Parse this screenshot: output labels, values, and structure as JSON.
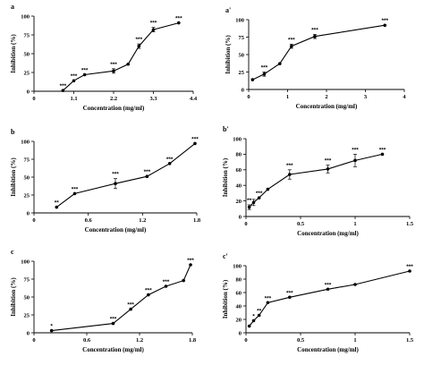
{
  "chart_data": [
    {
      "type": "line",
      "panel_label": "a",
      "xlabel": "Concentration (mg/ml)",
      "ylabel": "Inhibition (%)",
      "xlim": [
        0,
        4.4
      ],
      "ylim": [
        0,
        100
      ],
      "xticks": [
        {
          "value": 0,
          "label": "0"
        },
        {
          "value": 1.1,
          "label": "1.1"
        },
        {
          "value": 2.2,
          "label": "2.2"
        },
        {
          "value": 3.3,
          "label": "3.3"
        },
        {
          "value": 4.4,
          "label": "4.4"
        }
      ],
      "yticks": [
        0,
        25,
        50,
        75,
        100
      ],
      "x": [
        0.8,
        1.1,
        1.4,
        2.2,
        2.6,
        2.9,
        3.3,
        4.0
      ],
      "y": [
        1,
        14,
        22,
        27,
        36,
        60,
        82,
        91
      ],
      "err": [
        0,
        0,
        0,
        3,
        0,
        3,
        3,
        0
      ],
      "labels": [
        "***",
        "***",
        "***",
        "***",
        "",
        "***",
        "***",
        "***"
      ]
    },
    {
      "type": "line",
      "panel_label": "a'",
      "xlabel": "Concentration (mg/ml)",
      "ylabel": "Inhibition (%)",
      "xlim": [
        0,
        4
      ],
      "ylim": [
        0,
        100
      ],
      "xticks": [
        {
          "value": 0,
          "label": "0"
        },
        {
          "value": 1,
          "label": "1"
        },
        {
          "value": 2,
          "label": "2"
        },
        {
          "value": 3,
          "label": "3"
        },
        {
          "value": 4,
          "label": "4"
        }
      ],
      "yticks": [
        0,
        25,
        50,
        75,
        100
      ],
      "x": [
        0.1,
        0.4,
        0.8,
        1.1,
        1.7,
        3.5
      ],
      "y": [
        14,
        22,
        37,
        62,
        76,
        92
      ],
      "err": [
        0,
        3,
        0,
        3,
        3,
        0
      ],
      "labels": [
        "",
        "***",
        "",
        "***",
        "***",
        "***"
      ]
    },
    {
      "type": "line",
      "panel_label": "b",
      "xlabel": "Concentration (mg/ml)",
      "ylabel": "Inhibition (%)",
      "xlim": [
        0,
        1.8
      ],
      "ylim": [
        0,
        100
      ],
      "xticks": [
        {
          "value": 0,
          "label": "0"
        },
        {
          "value": 0.6,
          "label": "0.6"
        },
        {
          "value": 1.2,
          "label": "1.2"
        },
        {
          "value": 1.8,
          "label": "1.8"
        }
      ],
      "yticks": [
        0,
        25,
        50,
        75,
        100
      ],
      "x": [
        0.25,
        0.45,
        0.9,
        1.25,
        1.5,
        1.78
      ],
      "y": [
        8,
        27,
        41,
        51,
        69,
        97
      ],
      "err": [
        0,
        0,
        7,
        0,
        0,
        0
      ],
      "labels": [
        "**",
        "***",
        "***",
        "***",
        "***",
        "***"
      ]
    },
    {
      "type": "line",
      "panel_label": "b'",
      "xlabel": "Concentration (mg/ml)",
      "ylabel": "Inhibition (%)",
      "xlim": [
        0,
        1.5
      ],
      "ylim": [
        0,
        100
      ],
      "xticks": [
        {
          "value": 0,
          "label": "0"
        },
        {
          "value": 0.5,
          "label": "0.5"
        },
        {
          "value": 1,
          "label": "1"
        },
        {
          "value": 1.5,
          "label": "1.5"
        }
      ],
      "yticks": [
        0,
        20,
        40,
        60,
        80,
        100
      ],
      "x": [
        0.03,
        0.07,
        0.12,
        0.2,
        0.4,
        0.75,
        1.0,
        1.25
      ],
      "y": [
        12,
        18,
        24,
        35,
        54,
        61,
        72,
        80
      ],
      "err": [
        3,
        4,
        0,
        0,
        6,
        5,
        8,
        0
      ],
      "labels": [
        "**",
        "",
        "***",
        "",
        "***",
        "***",
        "***",
        "***"
      ]
    },
    {
      "type": "line",
      "panel_label": "c",
      "xlabel": "Concentration (mg/ml)",
      "ylabel": "Inhibition (%)",
      "xlim": [
        0,
        1.8
      ],
      "ylim": [
        0,
        100
      ],
      "xticks": [
        {
          "value": 0,
          "label": "0"
        },
        {
          "value": 0.6,
          "label": "0.6"
        },
        {
          "value": 1.2,
          "label": "1.2"
        },
        {
          "value": 1.8,
          "label": "1.8"
        }
      ],
      "yticks": [
        0,
        25,
        50,
        75,
        100
      ],
      "x": [
        0.2,
        0.9,
        1.1,
        1.3,
        1.5,
        1.7,
        1.78
      ],
      "y": [
        3,
        13,
        33,
        53,
        65,
        73,
        95
      ],
      "err": [
        0,
        0,
        0,
        0,
        0,
        0,
        0
      ],
      "labels": [
        "*",
        "***",
        "***",
        "***",
        "***",
        "",
        "***"
      ]
    },
    {
      "type": "line",
      "panel_label": "c'",
      "xlabel": "Concentration (mg/ml)",
      "ylabel": "Inhibition (%)",
      "xlim": [
        0,
        1.5
      ],
      "ylim": [
        0,
        100
      ],
      "xticks": [
        {
          "value": 0,
          "label": "0"
        },
        {
          "value": 0.5,
          "label": "0.5"
        },
        {
          "value": 1,
          "label": "1"
        },
        {
          "value": 1.5,
          "label": "1.5"
        }
      ],
      "yticks": [
        0,
        20,
        40,
        60,
        80,
        100
      ],
      "x": [
        0.03,
        0.07,
        0.12,
        0.2,
        0.4,
        0.75,
        1.0,
        1.5
      ],
      "y": [
        10,
        18,
        26,
        45,
        53,
        65,
        72,
        92
      ],
      "err": [
        0,
        0,
        0,
        0,
        0,
        0,
        0,
        0
      ],
      "labels": [
        "",
        "*",
        "**",
        "***",
        "***",
        "***",
        "",
        "***"
      ]
    }
  ]
}
